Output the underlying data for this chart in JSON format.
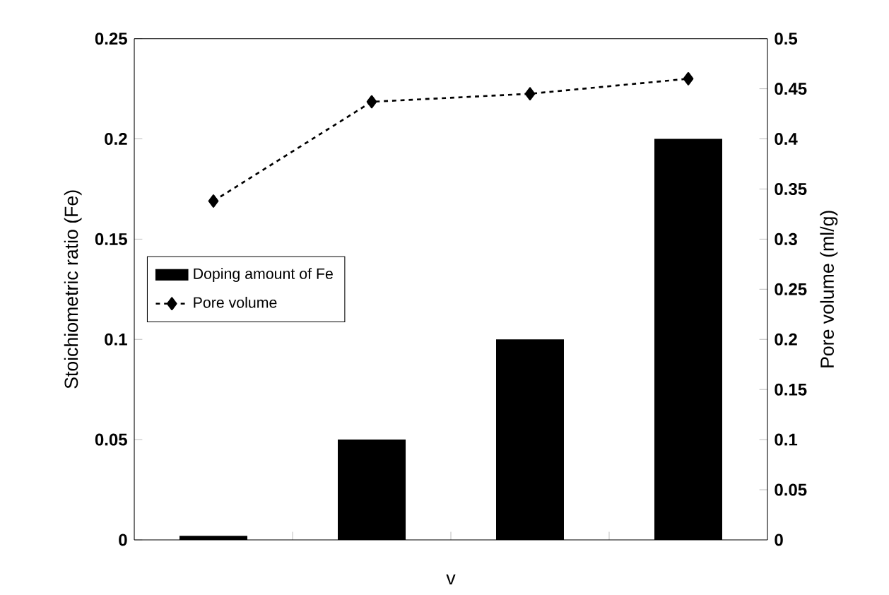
{
  "chart_data": {
    "type": "bar",
    "xlabel": "v",
    "ylabel": "Stoichiometric ratio (Fe)",
    "y2label": "Pore volume (ml/g)",
    "categories": [
      null,
      null,
      null,
      null
    ],
    "series": [
      {
        "name": "Doping amount of Fe",
        "color": "#000000",
        "values": [
          0.002,
          0.05,
          0.1,
          0.2
        ]
      },
      {
        "name": "Pore volume",
        "type": "line",
        "axis": "y2",
        "color": "#000000",
        "marker": "diamond",
        "line_style": "dashed",
        "values": [
          0.338,
          0.437,
          0.445,
          0.46
        ]
      }
    ],
    "ylim": [
      0,
      0.25
    ],
    "yticks": [
      0,
      0.05,
      0.1,
      0.15,
      0.2,
      0.25
    ],
    "y2lim": [
      0,
      0.5
    ],
    "y2ticks": [
      0,
      0.05,
      0.1,
      0.15,
      0.2,
      0.25,
      0.3,
      0.35,
      0.4,
      0.45,
      0.5
    ],
    "legend": "left",
    "grid": false
  }
}
